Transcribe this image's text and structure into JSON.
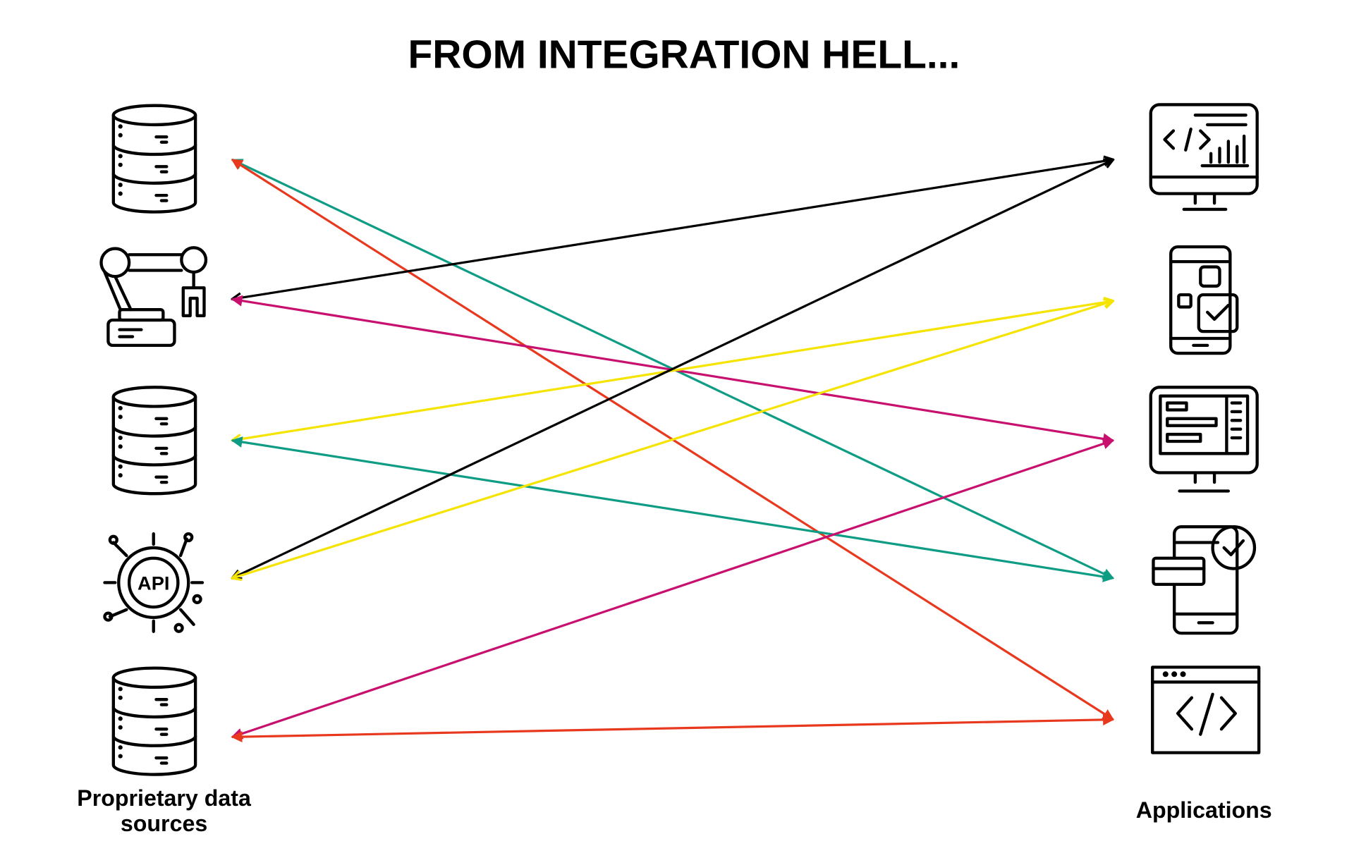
{
  "title": "FROM INTEGRATION HELL...",
  "left_label": {
    "lines": [
      "Proprietary data",
      "sources"
    ]
  },
  "right_label": "Applications"
}
